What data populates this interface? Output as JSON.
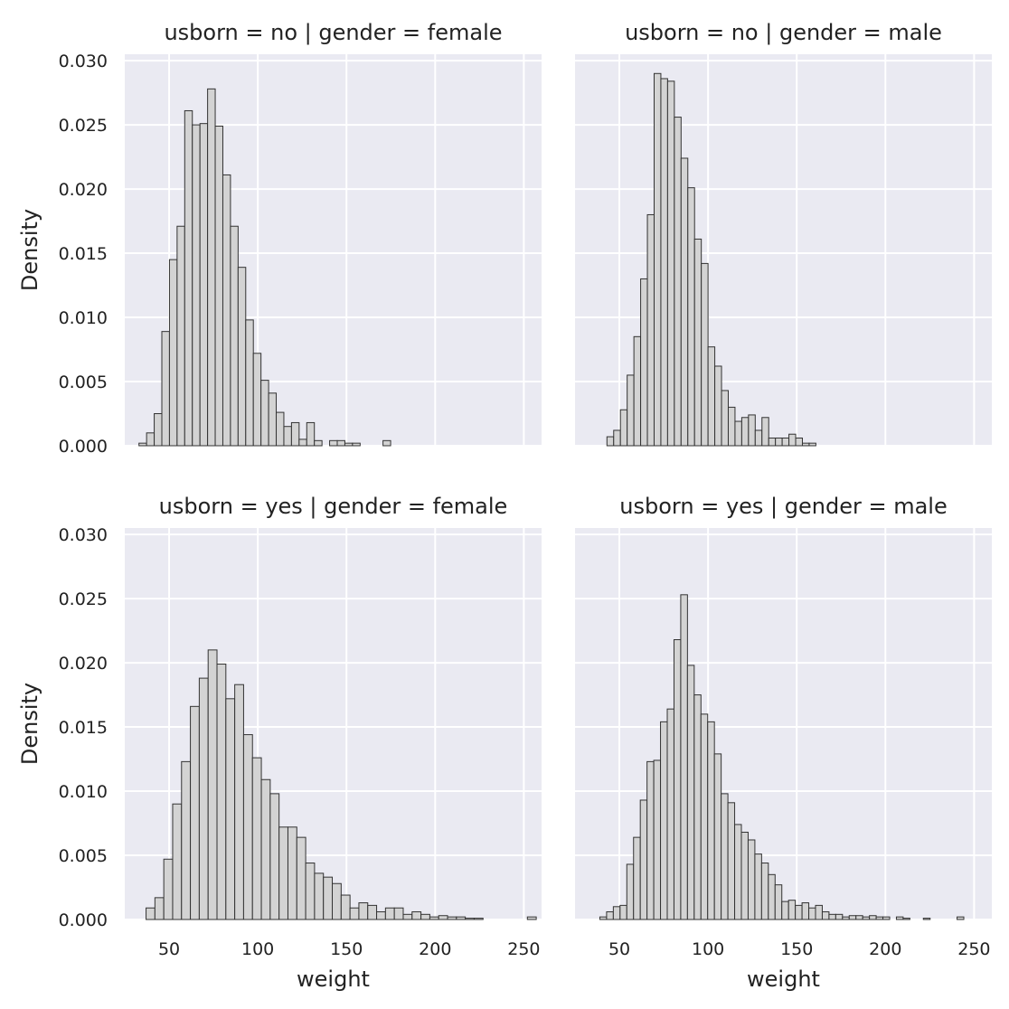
{
  "figure": {
    "xlabel": "weight",
    "ylabel": "Density"
  },
  "colors": {
    "panel_bg": "#EAEAF2",
    "grid": "#FFFFFF",
    "bar_fill": "#D3D3D3",
    "bar_edge": "#333333",
    "text": "#222222"
  },
  "chart_data": [
    {
      "type": "bar",
      "title": "usborn = no | gender = female",
      "xlabel": "",
      "ylabel": "Density",
      "xlim": [
        25,
        260
      ],
      "ylim": [
        0,
        0.0305
      ],
      "xticks": [
        50,
        100,
        150,
        200,
        250
      ],
      "yticks": [
        0,
        0.005,
        0.01,
        0.015,
        0.02,
        0.025,
        0.03
      ],
      "xtick_labels": [],
      "ytick_labels": [
        "0.000",
        "0.005",
        "0.010",
        "0.015",
        "0.020",
        "0.025",
        "0.030"
      ],
      "grid": true,
      "bin_width": 4.3,
      "bins_start": [
        33.0,
        37.3,
        41.6,
        45.9,
        50.2,
        54.5,
        58.8,
        63.1,
        67.4,
        71.7,
        76.0,
        80.3,
        84.6,
        88.9,
        93.2,
        97.5,
        101.8,
        106.1,
        110.4,
        114.7,
        119.0,
        123.3,
        127.6,
        131.9,
        136.2,
        140.5,
        144.8,
        149.1,
        153.4,
        157.7,
        162.0,
        166.3,
        170.6
      ],
      "values": [
        0.0002,
        0.001,
        0.0025,
        0.0089,
        0.0145,
        0.0171,
        0.0261,
        0.025,
        0.0251,
        0.0278,
        0.0249,
        0.0211,
        0.0171,
        0.0139,
        0.0098,
        0.0072,
        0.0051,
        0.0041,
        0.0026,
        0.0015,
        0.0018,
        0.0005,
        0.0018,
        0.0004,
        0.0,
        0.0004,
        0.0004,
        0.0002,
        0.0002,
        0.0,
        0.0,
        0.0,
        0.0004
      ]
    },
    {
      "type": "bar",
      "title": "usborn = no | gender = male",
      "xlabel": "",
      "ylabel": "",
      "xlim": [
        25,
        260
      ],
      "ylim": [
        0,
        0.0305
      ],
      "xticks": [
        50,
        100,
        150,
        200,
        250
      ],
      "yticks": [
        0,
        0.005,
        0.01,
        0.015,
        0.02,
        0.025,
        0.03
      ],
      "xtick_labels": [],
      "ytick_labels": [],
      "grid": true,
      "bin_width": 3.8,
      "bins_start": [
        43.0,
        46.8,
        50.6,
        54.4,
        58.2,
        62.0,
        65.8,
        69.6,
        73.4,
        77.2,
        81.0,
        84.8,
        88.6,
        92.4,
        96.2,
        100.0,
        103.8,
        107.6,
        111.4,
        115.2,
        119.0,
        122.8,
        126.6,
        130.4,
        134.2,
        138.0,
        141.8,
        145.6,
        149.4,
        153.2,
        157.0
      ],
      "values": [
        0.0007,
        0.0012,
        0.0028,
        0.0055,
        0.0085,
        0.013,
        0.018,
        0.029,
        0.0286,
        0.0284,
        0.0256,
        0.0224,
        0.0201,
        0.0161,
        0.0142,
        0.0077,
        0.0062,
        0.0043,
        0.003,
        0.0019,
        0.0022,
        0.0024,
        0.0012,
        0.0022,
        0.0006,
        0.0006,
        0.0006,
        0.0009,
        0.0006,
        0.0002,
        0.0002
      ]
    },
    {
      "type": "bar",
      "title": "usborn = yes | gender = female",
      "xlabel": "weight",
      "ylabel": "Density",
      "xlim": [
        25,
        260
      ],
      "ylim": [
        0,
        0.0305
      ],
      "xticks": [
        50,
        100,
        150,
        200,
        250
      ],
      "yticks": [
        0,
        0.005,
        0.01,
        0.015,
        0.02,
        0.025,
        0.03
      ],
      "xtick_labels": [
        "50",
        "100",
        "150",
        "200",
        "250"
      ],
      "ytick_labels": [
        "0.000",
        "0.005",
        "0.010",
        "0.015",
        "0.020",
        "0.025",
        "0.030"
      ],
      "grid": true,
      "bin_width": 5.0,
      "bins_start": [
        37,
        42,
        47,
        52,
        57,
        62,
        67,
        72,
        77,
        82,
        87,
        92,
        97,
        102,
        107,
        112,
        117,
        122,
        127,
        132,
        137,
        142,
        147,
        152,
        157,
        162,
        167,
        172,
        177,
        182,
        187,
        192,
        197,
        202,
        207,
        212,
        217,
        222,
        227,
        232,
        237,
        242,
        247,
        252
      ],
      "values": [
        0.0009,
        0.0017,
        0.0047,
        0.009,
        0.0123,
        0.0166,
        0.0188,
        0.021,
        0.0199,
        0.0172,
        0.0183,
        0.0144,
        0.0126,
        0.0109,
        0.0098,
        0.0072,
        0.0072,
        0.0064,
        0.0044,
        0.0036,
        0.0033,
        0.0028,
        0.0019,
        0.0009,
        0.0013,
        0.0011,
        0.0006,
        0.0009,
        0.0009,
        0.0004,
        0.0006,
        0.0004,
        0.0002,
        0.0003,
        0.0002,
        0.0002,
        0.0001,
        0.0001,
        0.0,
        0.0,
        0.0,
        0.0,
        0.0,
        0.0002
      ]
    },
    {
      "type": "bar",
      "title": "usborn = yes | gender = male",
      "xlabel": "weight",
      "ylabel": "",
      "xlim": [
        25,
        260
      ],
      "ylim": [
        0,
        0.0305
      ],
      "xticks": [
        50,
        100,
        150,
        200,
        250
      ],
      "yticks": [
        0,
        0.005,
        0.01,
        0.015,
        0.02,
        0.025,
        0.03
      ],
      "xtick_labels": [
        "50",
        "100",
        "150",
        "200",
        "250"
      ],
      "ytick_labels": [],
      "grid": true,
      "bin_width": 3.8,
      "bins_start": [
        39.0,
        42.8,
        46.6,
        50.4,
        54.2,
        58.0,
        61.8,
        65.6,
        69.4,
        73.2,
        77.0,
        80.8,
        84.6,
        88.4,
        92.2,
        96.0,
        99.8,
        103.6,
        107.4,
        111.2,
        115.0,
        118.8,
        122.6,
        126.4,
        130.2,
        134.0,
        137.8,
        141.6,
        145.4,
        149.2,
        153.0,
        156.8,
        160.6,
        164.4,
        168.2,
        172.0,
        175.8,
        179.6,
        183.4,
        187.2,
        191.0,
        194.8,
        198.6,
        202.4,
        206.2,
        210.0,
        213.8,
        217.6,
        221.4,
        225.2,
        229.0,
        232.8,
        236.6,
        240.4
      ],
      "values": [
        0.0002,
        0.0006,
        0.001,
        0.0011,
        0.0043,
        0.0064,
        0.0093,
        0.0123,
        0.0124,
        0.0154,
        0.0164,
        0.0218,
        0.0253,
        0.0198,
        0.0175,
        0.016,
        0.0154,
        0.0129,
        0.0098,
        0.0091,
        0.0074,
        0.0068,
        0.0062,
        0.0051,
        0.0044,
        0.0035,
        0.0027,
        0.0014,
        0.0015,
        0.0011,
        0.0013,
        0.0009,
        0.0011,
        0.0006,
        0.0004,
        0.0004,
        0.0002,
        0.0003,
        0.0003,
        0.0002,
        0.0003,
        0.0002,
        0.0002,
        0.0,
        0.0002,
        0.0001,
        0.0,
        0.0,
        0.0001,
        0.0,
        0.0,
        0.0,
        0.0,
        0.0002
      ]
    }
  ]
}
